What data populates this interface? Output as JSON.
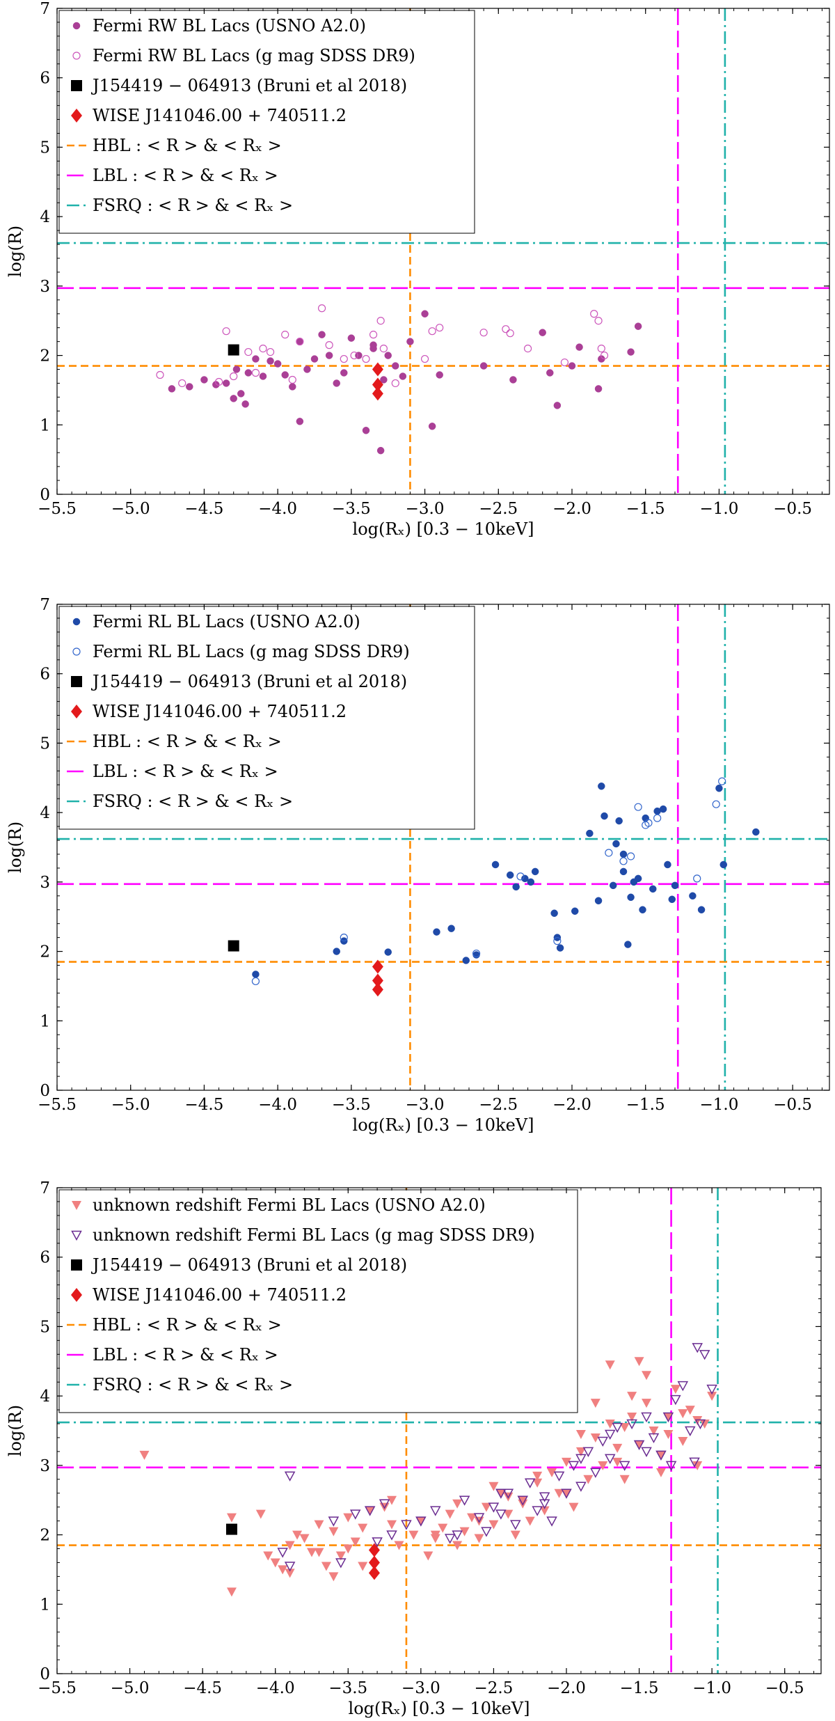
{
  "chart_data": [
    {
      "type": "scatter",
      "title": "",
      "xlabel": "log(Rₓ) [0.3 − 10keV]",
      "ylabel": "log(R)",
      "xlim": [
        -5.5,
        -0.25
      ],
      "ylim": [
        0,
        7
      ],
      "xticks": [
        -5.5,
        -5.0,
        -4.5,
        -4.0,
        -3.5,
        -3.0,
        -2.5,
        -2.0,
        -1.5,
        -1.0,
        -0.5
      ],
      "yticks": [
        0,
        1,
        2,
        3,
        4,
        5,
        6,
        7
      ],
      "legend_position": "top-left",
      "colors": {
        "filled": "#aa3f96",
        "open": "#cc55bb",
        "reference": "#000000",
        "wise": "#e31a1c",
        "hbl": "#ff8c00",
        "lbl": "#ff00ff",
        "fsrq": "#20b2aa"
      },
      "legend": {
        "filled": "Fermi RW BL Lacs (USNO A2.0)",
        "open": "Fermi RW BL Lacs (g mag SDSS DR9)",
        "reference": "J154419 − 064913 (Bruni et al 2018)",
        "wise": "WISE J141046.00 + 740511.2",
        "hbl": "HBL : < R > & < Rₓ >",
        "lbl": "LBL : < R > & < Rₓ >",
        "fsrq": "FSRQ : < R > & < Rₓ >"
      },
      "lines": {
        "hbl": {
          "x": -3.1,
          "y": 1.85
        },
        "lbl": {
          "x": -1.28,
          "y": 2.97
        },
        "fsrq": {
          "x": -0.96,
          "y": 3.62
        }
      },
      "series": [
        {
          "name": "Fermi RW BL Lacs (USNO A2.0)",
          "marker": "filled-circle",
          "x": [
            -4.72,
            -4.6,
            -4.5,
            -4.42,
            -4.35,
            -4.28,
            -4.25,
            -4.2,
            -4.15,
            -4.1,
            -4.05,
            -4.0,
            -3.95,
            -3.9,
            -3.85,
            -3.8,
            -3.75,
            -3.7,
            -3.65,
            -3.6,
            -3.55,
            -3.5,
            -3.45,
            -3.4,
            -3.35,
            -3.32,
            -3.3,
            -3.28,
            -3.25,
            -3.2,
            -3.15,
            -3.1,
            -3.0,
            -2.95,
            -2.9,
            -2.6,
            -2.4,
            -2.2,
            -2.15,
            -2.1,
            -2.0,
            -1.95,
            -1.82,
            -1.8,
            -1.6,
            -1.55,
            -4.3,
            -4.22,
            -3.85,
            -3.35
          ],
          "y": [
            1.52,
            1.55,
            1.65,
            1.58,
            1.6,
            1.8,
            1.45,
            1.75,
            1.95,
            1.7,
            1.92,
            1.88,
            1.72,
            1.55,
            2.2,
            1.8,
            1.95,
            2.3,
            2.0,
            1.6,
            1.75,
            2.25,
            2.0,
            0.92,
            2.1,
            1.8,
            0.63,
            1.65,
            2.0,
            1.85,
            1.7,
            2.2,
            2.6,
            0.98,
            1.72,
            1.85,
            1.65,
            2.33,
            1.75,
            1.28,
            1.85,
            2.12,
            1.52,
            1.95,
            2.05,
            2.42,
            1.38,
            1.3,
            1.05,
            2.15
          ]
        },
        {
          "name": "Fermi RW BL Lacs (g mag SDSS DR9)",
          "marker": "open-circle",
          "x": [
            -4.8,
            -4.65,
            -4.4,
            -4.35,
            -4.3,
            -4.2,
            -4.15,
            -4.1,
            -4.05,
            -3.95,
            -3.9,
            -3.85,
            -3.7,
            -3.65,
            -3.55,
            -3.48,
            -3.4,
            -3.35,
            -3.3,
            -3.28,
            -3.2,
            -3.0,
            -2.95,
            -2.9,
            -2.6,
            -2.45,
            -2.42,
            -2.3,
            -2.05,
            -1.85,
            -1.82,
            -1.8,
            -1.78
          ],
          "y": [
            1.72,
            1.6,
            1.62,
            2.35,
            1.7,
            2.05,
            1.75,
            2.1,
            2.05,
            2.3,
            1.65,
            2.2,
            2.68,
            2.15,
            1.95,
            2.0,
            1.95,
            2.3,
            2.5,
            2.1,
            1.6,
            1.95,
            2.35,
            2.4,
            2.33,
            2.38,
            2.32,
            2.1,
            1.9,
            2.6,
            2.5,
            2.1,
            2.0
          ]
        },
        {
          "name": "J154419 − 064913 (Bruni et al 2018)",
          "marker": "square",
          "x": [
            -4.3
          ],
          "y": [
            2.08
          ]
        },
        {
          "name": "WISE J141046.00 + 740511.2",
          "marker": "diamond",
          "x": [
            -3.32,
            -3.32,
            -3.32
          ],
          "y": [
            1.8,
            1.58,
            1.45
          ]
        }
      ]
    },
    {
      "type": "scatter",
      "title": "",
      "xlabel": "log(Rₓ) [0.3 − 10keV]",
      "ylabel": "log(R)",
      "xlim": [
        -5.5,
        -0.25
      ],
      "ylim": [
        0,
        7
      ],
      "xticks": [
        -5.5,
        -5.0,
        -4.5,
        -4.0,
        -3.5,
        -3.0,
        -2.5,
        -2.0,
        -1.5,
        -1.0,
        -0.5
      ],
      "yticks": [
        0,
        1,
        2,
        3,
        4,
        5,
        6,
        7
      ],
      "legend_position": "top-left",
      "colors": {
        "filled": "#1f4aa8",
        "open": "#3366cc",
        "reference": "#000000",
        "wise": "#e31a1c",
        "hbl": "#ff8c00",
        "lbl": "#ff00ff",
        "fsrq": "#20b2aa"
      },
      "legend": {
        "filled": "Fermi RL BL Lacs (USNO A2.0)",
        "open": "Fermi RL BL Lacs (g mag SDSS DR9)",
        "reference": "J154419 − 064913 (Bruni et al 2018)",
        "wise": "WISE J141046.00 + 740511.2",
        "hbl": "HBL : < R > & < Rₓ >",
        "lbl": "LBL : < R > & < Rₓ >",
        "fsrq": "FSRQ : < R > & < Rₓ >"
      },
      "lines": {
        "hbl": {
          "x": -3.1,
          "y": 1.85
        },
        "lbl": {
          "x": -1.28,
          "y": 2.97
        },
        "fsrq": {
          "x": -0.96,
          "y": 3.62
        }
      },
      "series": [
        {
          "name": "Fermi RL BL Lacs (USNO A2.0)",
          "marker": "filled-circle",
          "x": [
            -4.15,
            -3.6,
            -3.55,
            -3.25,
            -2.92,
            -2.82,
            -2.72,
            -2.65,
            -2.52,
            -2.42,
            -2.38,
            -2.32,
            -2.25,
            -2.12,
            -2.1,
            -2.08,
            -1.98,
            -1.88,
            -1.82,
            -1.8,
            -1.78,
            -1.72,
            -1.68,
            -1.65,
            -1.62,
            -1.6,
            -1.58,
            -1.55,
            -1.52,
            -1.5,
            -1.45,
            -1.42,
            -1.38,
            -1.35,
            -1.32,
            -1.3,
            -1.18,
            -1.12,
            -1.0,
            -0.97,
            -0.75,
            -1.7,
            -1.65,
            -2.28
          ],
          "y": [
            1.67,
            2.0,
            2.15,
            1.99,
            2.28,
            2.33,
            1.87,
            1.95,
            3.25,
            3.1,
            2.93,
            3.05,
            3.15,
            2.55,
            2.2,
            2.05,
            2.58,
            3.7,
            2.73,
            4.38,
            3.95,
            2.95,
            3.88,
            3.15,
            2.1,
            2.78,
            3.0,
            3.05,
            2.6,
            3.92,
            2.9,
            4.02,
            4.05,
            3.25,
            2.75,
            2.95,
            2.8,
            2.6,
            4.35,
            3.25,
            3.72,
            3.55,
            3.4,
            3.0
          ]
        },
        {
          "name": "Fermi RL BL Lacs (g mag SDSS DR9)",
          "marker": "open-circle",
          "x": [
            -4.15,
            -3.55,
            -2.65,
            -2.35,
            -2.1,
            -1.75,
            -1.65,
            -1.6,
            -1.55,
            -1.5,
            -1.48,
            -1.42,
            -1.15,
            -1.02,
            -0.98
          ],
          "y": [
            1.57,
            2.2,
            1.97,
            3.08,
            2.15,
            3.42,
            3.3,
            3.37,
            4.08,
            3.82,
            3.85,
            3.92,
            3.05,
            4.12,
            4.45
          ]
        },
        {
          "name": "J154419 − 064913 (Bruni et al 2018)",
          "marker": "square",
          "x": [
            -4.3
          ],
          "y": [
            2.08
          ]
        },
        {
          "name": "WISE J141046.00 + 740511.2",
          "marker": "diamond",
          "x": [
            -3.32,
            -3.32,
            -3.32
          ],
          "y": [
            1.78,
            1.58,
            1.45
          ]
        }
      ]
    },
    {
      "type": "scatter",
      "title": "",
      "xlabel": "log(Rₓ) [0.3 − 10keV]",
      "ylabel": "log(R)",
      "xlim": [
        -5.5,
        -0.25
      ],
      "ylim": [
        0,
        7
      ],
      "xticks": [
        -5.5,
        -5.0,
        -4.5,
        -4.0,
        -3.5,
        -3.0,
        -2.5,
        -2.0,
        -1.5,
        -1.0,
        -0.5
      ],
      "yticks": [
        0,
        1,
        2,
        3,
        4,
        5,
        6,
        7
      ],
      "legend_position": "top-left",
      "colors": {
        "filled": "#f08080",
        "open": "#6a2c91",
        "reference": "#000000",
        "wise": "#e31a1c",
        "hbl": "#ff8c00",
        "lbl": "#ff00ff",
        "fsrq": "#20b2aa"
      },
      "legend": {
        "filled": "unknown redshift Fermi BL Lacs (USNO A2.0)",
        "open": "unknown redshift Fermi BL Lacs (g mag SDSS DR9)",
        "reference": "J154419 − 064913 (Bruni et al 2018)",
        "wise": "WISE J141046.00 + 740511.2",
        "hbl": "HBL : < R >  & < Rₓ >",
        "lbl": "LBL : < R >  & < Rₓ >",
        "fsrq": "FSRQ : < R >  & < Rₓ >"
      },
      "lines": {
        "hbl": {
          "x": -3.1,
          "y": 1.85
        },
        "lbl": {
          "x": -1.28,
          "y": 2.97
        },
        "fsrq": {
          "x": -0.96,
          "y": 3.62
        }
      },
      "series": [
        {
          "name": "unknown redshift Fermi BL Lacs (USNO A2.0)",
          "marker": "filled-triangle-down",
          "x": [
            -4.9,
            -4.3,
            -4.3,
            -4.1,
            -4.05,
            -4.0,
            -3.95,
            -3.9,
            -3.85,
            -3.8,
            -3.75,
            -3.7,
            -3.65,
            -3.6,
            -3.55,
            -3.5,
            -3.45,
            -3.4,
            -3.35,
            -3.25,
            -3.2,
            -3.15,
            -3.05,
            -3.0,
            -2.95,
            -2.9,
            -2.85,
            -2.8,
            -2.75,
            -2.7,
            -2.65,
            -2.6,
            -2.55,
            -2.5,
            -2.45,
            -2.4,
            -2.35,
            -2.3,
            -2.25,
            -2.2,
            -2.15,
            -2.1,
            -2.05,
            -2.0,
            -1.95,
            -1.9,
            -1.85,
            -1.8,
            -1.75,
            -1.7,
            -1.65,
            -1.6,
            -1.55,
            -1.5,
            -1.45,
            -1.4,
            -1.35,
            -1.3,
            -1.25,
            -1.2,
            -1.15,
            -1.1,
            -1.05,
            -1.0,
            -3.9,
            -3.6,
            -3.5,
            -3.4,
            -2.9,
            -2.6,
            -2.3,
            -2.0,
            -1.8,
            -1.7,
            -1.6,
            -1.5,
            -1.45,
            -1.3,
            -1.2,
            -1.1,
            -2.2,
            -2.4,
            -1.9,
            -1.65,
            -1.55,
            -1.35,
            -3.7,
            -3.2,
            -2.75,
            -2.5
          ],
          "y": [
            3.15,
            2.25,
            1.18,
            2.3,
            1.7,
            1.6,
            1.5,
            1.85,
            2.0,
            1.95,
            1.75,
            2.15,
            1.55,
            2.05,
            1.7,
            2.25,
            1.9,
            2.1,
            2.35,
            2.4,
            2.15,
            1.85,
            2.0,
            2.2,
            1.7,
            1.95,
            2.1,
            2.3,
            1.85,
            2.05,
            2.25,
            1.95,
            2.4,
            2.15,
            2.6,
            2.3,
            2.0,
            2.5,
            2.2,
            2.75,
            2.35,
            2.9,
            2.6,
            3.05,
            2.4,
            3.2,
            2.8,
            3.4,
            3.0,
            3.6,
            3.25,
            2.8,
            4.0,
            3.3,
            4.3,
            3.5,
            2.9,
            3.7,
            4.1,
            3.35,
            3.8,
            3.0,
            3.6,
            4.0,
            1.45,
            1.4,
            1.8,
            1.55,
            2.0,
            2.2,
            2.45,
            2.6,
            3.9,
            4.45,
            3.55,
            4.5,
            3.9,
            3.45,
            3.75,
            3.65,
            2.85,
            2.55,
            3.45,
            3.05,
            3.7,
            3.15,
            1.75,
            2.5,
            2.45,
            2.7
          ]
        },
        {
          "name": "unknown redshift Fermi BL Lacs (g mag SDSS DR9)",
          "marker": "open-triangle-down",
          "x": [
            -3.95,
            -3.9,
            -3.6,
            -3.55,
            -3.45,
            -3.35,
            -3.25,
            -3.2,
            -3.1,
            -3.0,
            -2.9,
            -2.8,
            -2.7,
            -2.6,
            -2.55,
            -2.5,
            -2.45,
            -2.4,
            -2.35,
            -2.3,
            -2.25,
            -2.2,
            -2.15,
            -2.1,
            -2.05,
            -2.0,
            -1.95,
            -1.9,
            -1.85,
            -1.8,
            -1.75,
            -1.7,
            -1.65,
            -1.6,
            -1.55,
            -1.5,
            -1.45,
            -1.4,
            -1.35,
            -1.3,
            -1.25,
            -1.2,
            -1.15,
            -1.1,
            -1.05,
            -1.0,
            -3.9,
            -3.3,
            -2.75,
            -2.45,
            -2.15,
            -1.9,
            -1.7,
            -1.45,
            -1.28,
            -1.12,
            -1.08
          ],
          "y": [
            1.75,
            2.85,
            2.2,
            1.6,
            2.3,
            2.35,
            2.45,
            2.0,
            2.15,
            2.2,
            2.35,
            1.95,
            2.5,
            2.25,
            2.05,
            2.4,
            2.3,
            2.6,
            2.15,
            2.5,
            2.75,
            2.35,
            2.55,
            2.2,
            2.85,
            2.6,
            3.0,
            2.7,
            3.2,
            2.9,
            3.35,
            3.1,
            3.55,
            3.0,
            3.6,
            3.3,
            3.7,
            3.4,
            3.15,
            3.7,
            3.95,
            4.15,
            3.5,
            4.7,
            4.6,
            4.1,
            1.55,
            1.9,
            2.0,
            2.6,
            2.45,
            3.1,
            3.45,
            3.2,
            3.0,
            3.05,
            3.6
          ]
        },
        {
          "name": "J154419 − 064913 (Bruni et al 2018)",
          "marker": "square",
          "x": [
            -4.3
          ],
          "y": [
            2.08
          ]
        },
        {
          "name": "WISE J141046.00 + 740511.2",
          "marker": "diamond",
          "x": [
            -3.32,
            -3.32,
            -3.32
          ],
          "y": [
            1.78,
            1.6,
            1.45
          ]
        }
      ]
    }
  ]
}
